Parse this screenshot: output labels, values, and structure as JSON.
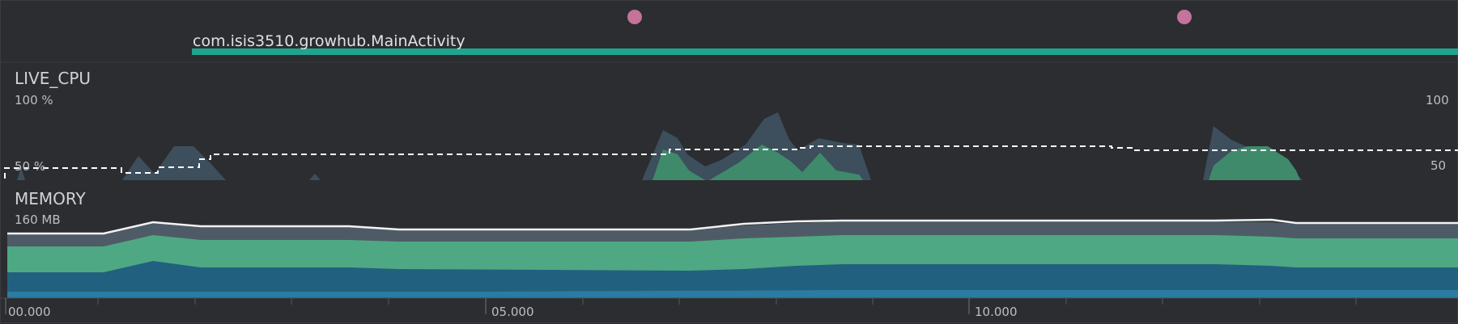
{
  "events": {
    "activity_name": "com.isis3510.growhub.MainActivity"
  },
  "cpu": {
    "title": "LIVE_CPU",
    "left_scale": [
      "100 %",
      "50 %"
    ],
    "right_scale": [
      "100",
      "50"
    ]
  },
  "memory": {
    "title": "MEMORY",
    "scale_label": "160 MB"
  },
  "timeline": {
    "labels": [
      "00.000",
      "05.000",
      "10.000"
    ]
  },
  "colors": {
    "background": "#2b2d30",
    "activity_bar": "#1fa58f",
    "event_dot": "#c4739b",
    "cpu_other": "#3d4e5c",
    "cpu_app": "#3e8a6a",
    "threads_line": "#ffffff",
    "mem_top": "#4e5b66",
    "mem_green": "#4ea883",
    "mem_blue": "#22607f",
    "mem_base": "#2a7ca3",
    "mem_outline": "#f2f2f2"
  }
}
